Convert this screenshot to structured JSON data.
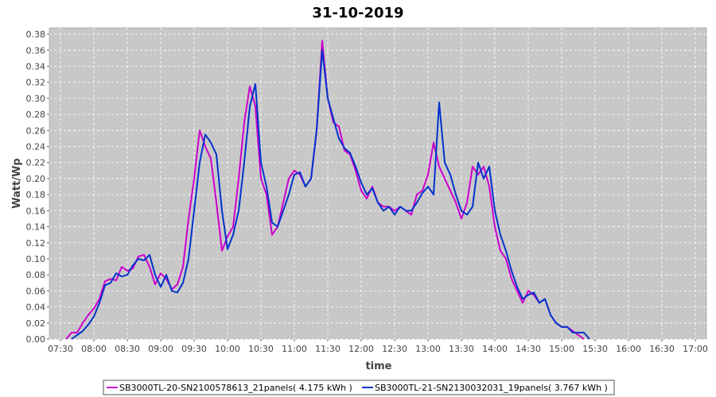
{
  "chart_data": {
    "type": "line",
    "title": "31-10-2019",
    "xlabel": "time",
    "ylabel": "Watt/Wp",
    "x_ticks": [
      "07:30",
      "08:00",
      "08:30",
      "09:00",
      "09:30",
      "10:00",
      "10:30",
      "11:00",
      "11:30",
      "12:00",
      "12:30",
      "13:00",
      "13:30",
      "14:00",
      "14:30",
      "15:00",
      "15:30",
      "16:00",
      "16:30",
      "17:00"
    ],
    "y_ticks": [
      "0.00",
      "0.02",
      "0.04",
      "0.06",
      "0.08",
      "0.10",
      "0.12",
      "0.14",
      "0.16",
      "0.18",
      "0.20",
      "0.22",
      "0.24",
      "0.26",
      "0.28",
      "0.30",
      "0.32",
      "0.34",
      "0.36",
      "0.38"
    ],
    "xlim": [
      "07:20",
      "17:10"
    ],
    "ylim": [
      0,
      0.388
    ],
    "grid": true,
    "legend_position": "bottom",
    "background_color": "#c8c8c8",
    "series": [
      {
        "name": "SB3000TL-20-SN2100578613_21panels( 4.175 kWh )",
        "color": "#cc00cc",
        "points": [
          [
            "07:35",
            0.0
          ],
          [
            "07:40",
            0.008
          ],
          [
            "07:45",
            0.008
          ],
          [
            "07:50",
            0.02
          ],
          [
            "07:55",
            0.03
          ],
          [
            "08:00",
            0.038
          ],
          [
            "08:05",
            0.05
          ],
          [
            "08:10",
            0.072
          ],
          [
            "08:15",
            0.075
          ],
          [
            "08:20",
            0.073
          ],
          [
            "08:25",
            0.09
          ],
          [
            "08:30",
            0.085
          ],
          [
            "08:35",
            0.088
          ],
          [
            "08:40",
            0.103
          ],
          [
            "08:45",
            0.105
          ],
          [
            "08:50",
            0.09
          ],
          [
            "08:55",
            0.068
          ],
          [
            "09:00",
            0.082
          ],
          [
            "09:05",
            0.075
          ],
          [
            "09:10",
            0.062
          ],
          [
            "09:15",
            0.068
          ],
          [
            "09:20",
            0.09
          ],
          [
            "09:25",
            0.15
          ],
          [
            "09:30",
            0.2
          ],
          [
            "09:35",
            0.26
          ],
          [
            "09:40",
            0.24
          ],
          [
            "09:45",
            0.225
          ],
          [
            "09:50",
            0.17
          ],
          [
            "09:55",
            0.11
          ],
          [
            "10:00",
            0.128
          ],
          [
            "10:05",
            0.14
          ],
          [
            "10:10",
            0.2
          ],
          [
            "10:15",
            0.27
          ],
          [
            "10:20",
            0.315
          ],
          [
            "10:25",
            0.29
          ],
          [
            "10:30",
            0.2
          ],
          [
            "10:35",
            0.18
          ],
          [
            "10:40",
            0.13
          ],
          [
            "10:45",
            0.14
          ],
          [
            "10:50",
            0.17
          ],
          [
            "10:55",
            0.2
          ],
          [
            "11:00",
            0.21
          ],
          [
            "11:05",
            0.205
          ],
          [
            "11:10",
            0.19
          ],
          [
            "11:15",
            0.2
          ],
          [
            "11:20",
            0.26
          ],
          [
            "11:25",
            0.372
          ],
          [
            "11:30",
            0.3
          ],
          [
            "11:35",
            0.27
          ],
          [
            "11:40",
            0.265
          ],
          [
            "11:45",
            0.235
          ],
          [
            "11:50",
            0.23
          ],
          [
            "11:55",
            0.21
          ],
          [
            "12:00",
            0.185
          ],
          [
            "12:05",
            0.175
          ],
          [
            "12:10",
            0.19
          ],
          [
            "12:15",
            0.17
          ],
          [
            "12:20",
            0.165
          ],
          [
            "12:25",
            0.165
          ],
          [
            "12:30",
            0.16
          ],
          [
            "12:35",
            0.165
          ],
          [
            "12:40",
            0.16
          ],
          [
            "12:45",
            0.155
          ],
          [
            "12:50",
            0.18
          ],
          [
            "12:55",
            0.185
          ],
          [
            "13:00",
            0.205
          ],
          [
            "13:05",
            0.245
          ],
          [
            "13:10",
            0.215
          ],
          [
            "13:15",
            0.2
          ],
          [
            "13:20",
            0.185
          ],
          [
            "13:25",
            0.17
          ],
          [
            "13:30",
            0.15
          ],
          [
            "13:35",
            0.17
          ],
          [
            "13:40",
            0.215
          ],
          [
            "13:45",
            0.205
          ],
          [
            "13:50",
            0.215
          ],
          [
            "13:55",
            0.19
          ],
          [
            "14:00",
            0.14
          ],
          [
            "14:05",
            0.11
          ],
          [
            "14:10",
            0.1
          ],
          [
            "14:15",
            0.075
          ],
          [
            "14:20",
            0.06
          ],
          [
            "14:25",
            0.045
          ],
          [
            "14:30",
            0.06
          ],
          [
            "14:35",
            0.055
          ],
          [
            "14:40",
            0.045
          ],
          [
            "14:45",
            0.05
          ],
          [
            "14:50",
            0.03
          ],
          [
            "14:55",
            0.02
          ],
          [
            "15:00",
            0.015
          ],
          [
            "15:05",
            0.015
          ],
          [
            "15:10",
            0.01
          ],
          [
            "15:15",
            0.005
          ],
          [
            "15:20",
            0.0
          ]
        ]
      },
      {
        "name": "SB3000TL-21-SN2130032031_19panels( 3.767 kWh )",
        "color": "#0033cc",
        "points": [
          [
            "07:40",
            0.0
          ],
          [
            "07:45",
            0.005
          ],
          [
            "07:50",
            0.01
          ],
          [
            "07:55",
            0.018
          ],
          [
            "08:00",
            0.028
          ],
          [
            "08:05",
            0.045
          ],
          [
            "08:10",
            0.067
          ],
          [
            "08:15",
            0.07
          ],
          [
            "08:20",
            0.082
          ],
          [
            "08:25",
            0.078
          ],
          [
            "08:30",
            0.08
          ],
          [
            "08:35",
            0.092
          ],
          [
            "08:40",
            0.1
          ],
          [
            "08:45",
            0.098
          ],
          [
            "08:50",
            0.105
          ],
          [
            "08:55",
            0.08
          ],
          [
            "09:00",
            0.065
          ],
          [
            "09:05",
            0.08
          ],
          [
            "09:10",
            0.06
          ],
          [
            "09:15",
            0.058
          ],
          [
            "09:20",
            0.07
          ],
          [
            "09:25",
            0.1
          ],
          [
            "09:30",
            0.16
          ],
          [
            "09:35",
            0.22
          ],
          [
            "09:40",
            0.255
          ],
          [
            "09:45",
            0.245
          ],
          [
            "09:50",
            0.23
          ],
          [
            "09:55",
            0.16
          ],
          [
            "10:00",
            0.112
          ],
          [
            "10:05",
            0.13
          ],
          [
            "10:10",
            0.16
          ],
          [
            "10:15",
            0.22
          ],
          [
            "10:20",
            0.29
          ],
          [
            "10:25",
            0.318
          ],
          [
            "10:30",
            0.22
          ],
          [
            "10:35",
            0.19
          ],
          [
            "10:40",
            0.145
          ],
          [
            "10:45",
            0.14
          ],
          [
            "10:50",
            0.16
          ],
          [
            "10:55",
            0.18
          ],
          [
            "11:00",
            0.205
          ],
          [
            "11:05",
            0.208
          ],
          [
            "11:10",
            0.19
          ],
          [
            "11:15",
            0.2
          ],
          [
            "11:20",
            0.26
          ],
          [
            "11:25",
            0.36
          ],
          [
            "11:30",
            0.3
          ],
          [
            "11:35",
            0.275
          ],
          [
            "11:40",
            0.25
          ],
          [
            "11:45",
            0.238
          ],
          [
            "11:50",
            0.232
          ],
          [
            "11:55",
            0.215
          ],
          [
            "12:00",
            0.195
          ],
          [
            "12:05",
            0.18
          ],
          [
            "12:10",
            0.188
          ],
          [
            "12:15",
            0.17
          ],
          [
            "12:20",
            0.16
          ],
          [
            "12:25",
            0.165
          ],
          [
            "12:30",
            0.155
          ],
          [
            "12:35",
            0.165
          ],
          [
            "12:40",
            0.16
          ],
          [
            "12:45",
            0.16
          ],
          [
            "12:50",
            0.17
          ],
          [
            "12:55",
            0.182
          ],
          [
            "13:00",
            0.19
          ],
          [
            "13:05",
            0.18
          ],
          [
            "13:10",
            0.295
          ],
          [
            "13:15",
            0.22
          ],
          [
            "13:20",
            0.205
          ],
          [
            "13:25",
            0.18
          ],
          [
            "13:30",
            0.16
          ],
          [
            "13:35",
            0.155
          ],
          [
            "13:40",
            0.165
          ],
          [
            "13:45",
            0.22
          ],
          [
            "13:50",
            0.2
          ],
          [
            "13:55",
            0.215
          ],
          [
            "14:00",
            0.16
          ],
          [
            "14:05",
            0.13
          ],
          [
            "14:10",
            0.11
          ],
          [
            "14:15",
            0.085
          ],
          [
            "14:20",
            0.065
          ],
          [
            "14:25",
            0.05
          ],
          [
            "14:30",
            0.055
          ],
          [
            "14:35",
            0.058
          ],
          [
            "14:40",
            0.045
          ],
          [
            "14:45",
            0.05
          ],
          [
            "14:50",
            0.03
          ],
          [
            "14:55",
            0.02
          ],
          [
            "15:00",
            0.015
          ],
          [
            "15:05",
            0.015
          ],
          [
            "15:10",
            0.008
          ],
          [
            "15:15",
            0.008
          ],
          [
            "15:20",
            0.008
          ],
          [
            "15:25",
            0.0
          ]
        ]
      }
    ]
  }
}
